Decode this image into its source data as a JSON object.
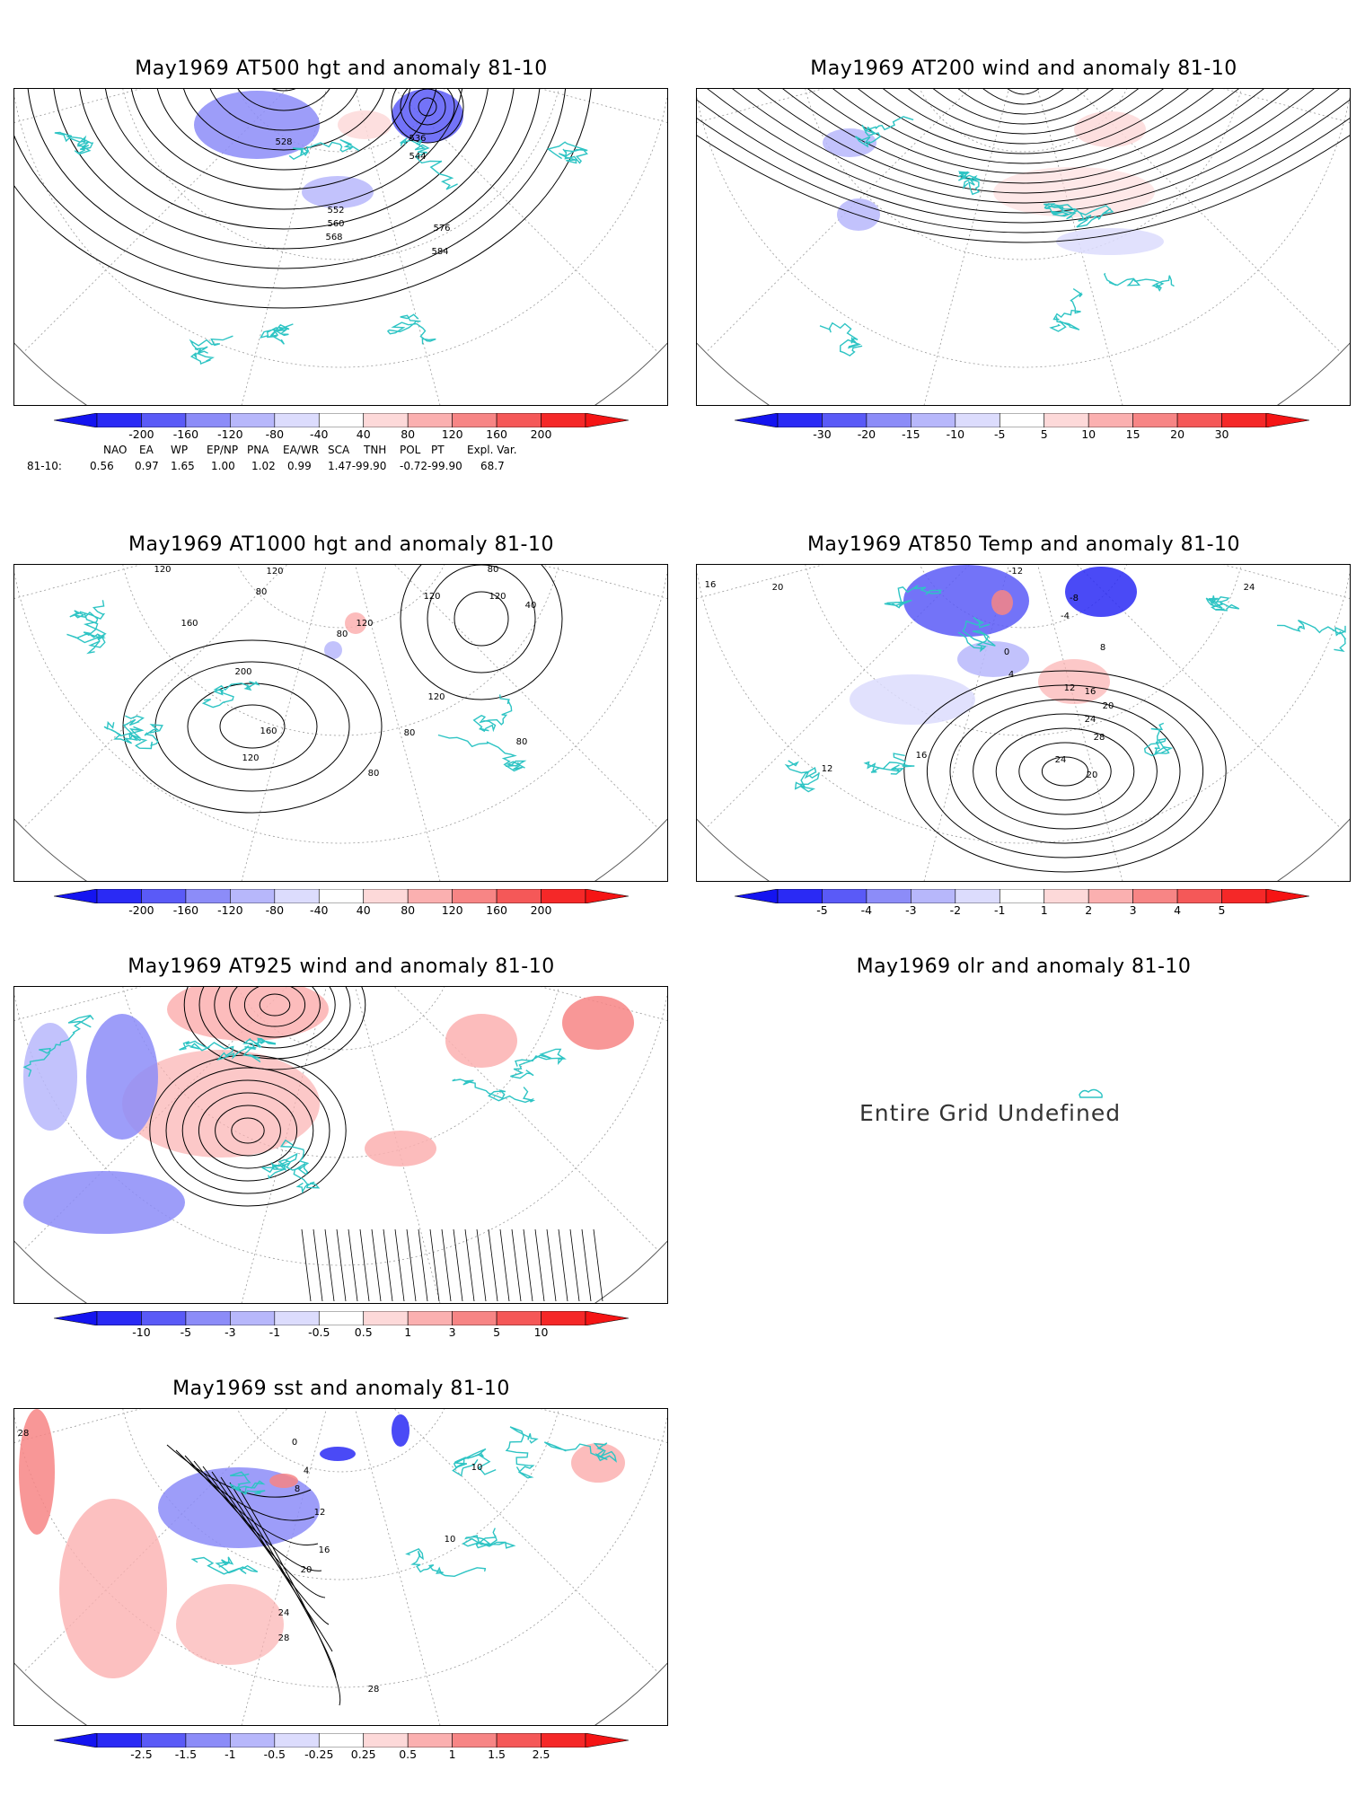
{
  "panels": [
    {
      "id": "p500",
      "title": "May1969 AT500 hgt and anomaly 81-10",
      "contour_labels": [
        "528",
        "536",
        "544",
        "552",
        "560",
        "568",
        "576",
        "584"
      ],
      "colorbar": [
        "-200",
        "-160",
        "-120",
        "-80",
        "-40",
        "40",
        "80",
        "120",
        "160",
        "200"
      ],
      "teleconnections": {
        "indices": [
          "NAO",
          "EA",
          "WP",
          "EP/NP",
          "PNA",
          "EA/WR",
          "SCA",
          "TNH",
          "POL",
          "PT",
          "Expl. Var."
        ],
        "row_label": "81-10:",
        "values": [
          "0.56",
          "0.97",
          "1.65",
          "1.00",
          "1.02",
          "0.99",
          "1.47-99.90",
          "-0.72-99.90",
          "68.7"
        ]
      }
    },
    {
      "id": "p200",
      "title": "May1969 AT200 wind and anomaly 81-10",
      "colorbar": [
        "-30",
        "-20",
        "-15",
        "-10",
        "-5",
        "5",
        "10",
        "15",
        "20",
        "30"
      ]
    },
    {
      "id": "p1000",
      "title": "May1969 AT1000 hgt and anomaly 81-10",
      "contour_labels": [
        "120",
        "80",
        "160",
        "120",
        "80",
        "200",
        "160",
        "120",
        "120",
        "120",
        "80",
        "120",
        "40",
        "120",
        "80",
        "80",
        "80"
      ],
      "colorbar": [
        "-200",
        "-160",
        "-120",
        "-80",
        "-40",
        "40",
        "80",
        "120",
        "160",
        "200"
      ]
    },
    {
      "id": "p850",
      "title": "May1969 AT850 Temp and anomaly 81-10",
      "contour_labels": [
        "16",
        "20",
        "-12",
        "-8",
        "-4",
        "24",
        "0",
        "4",
        "8",
        "12",
        "16",
        "20",
        "24",
        "28",
        "24",
        "20",
        "16",
        "12"
      ],
      "colorbar": [
        "-5",
        "-4",
        "-3",
        "-2",
        "-1",
        "1",
        "2",
        "3",
        "4",
        "5"
      ]
    },
    {
      "id": "p925",
      "title": "May1969 AT925 wind and anomaly 81-10",
      "colorbar": [
        "-10",
        "-5",
        "-3",
        "-1",
        "-0.5",
        "0.5",
        "1",
        "3",
        "5",
        "10"
      ]
    },
    {
      "id": "polr",
      "title": "May1969 olr and anomaly 81-10",
      "message": "Entire Grid Undefined"
    },
    {
      "id": "psst",
      "title": "May1969 sst and anomaly 81-10",
      "contour_labels": [
        "28",
        "0",
        "4",
        "8",
        "12",
        "16",
        "20",
        "24",
        "28",
        "28",
        "10",
        "10"
      ],
      "colorbar": [
        "-2.5",
        "-1.5",
        "-1",
        "-0.5",
        "-0.25",
        "0.25",
        "0.5",
        "1",
        "1.5",
        "2.5"
      ]
    }
  ],
  "colors": {
    "coast": "#2ec4c4",
    "blue_scale": [
      "#2a2af5",
      "#5a5af7",
      "#8c8cf8",
      "#b7b7fb",
      "#dcdcfd"
    ],
    "red_scale": [
      "#fdd9d9",
      "#fbb0b0",
      "#f78585",
      "#f55858",
      "#f52828"
    ],
    "contour": "#000000",
    "grid": "#999999"
  }
}
